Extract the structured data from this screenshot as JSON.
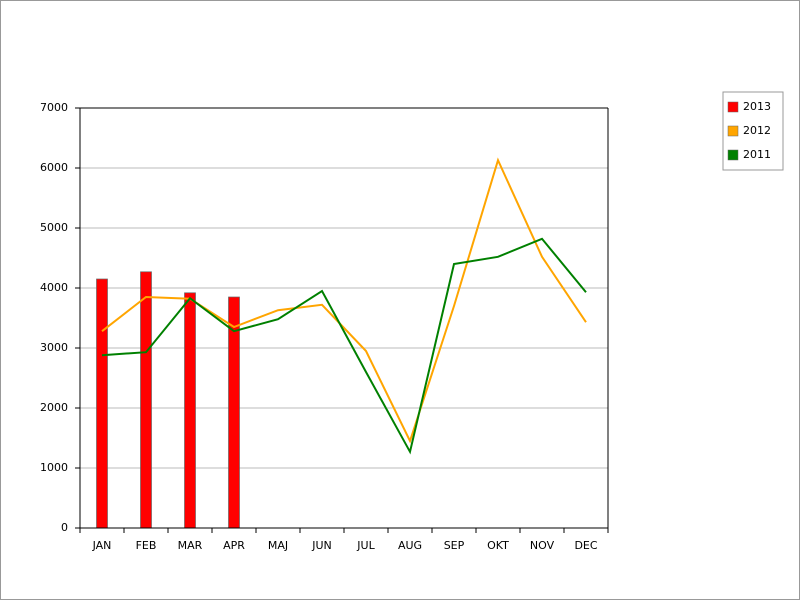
{
  "chart_data": {
    "type": "bar-line",
    "categories": [
      "JAN",
      "FEB",
      "MAR",
      "APR",
      "MAJ",
      "JUN",
      "JUL",
      "AUG",
      "SEP",
      "OKT",
      "NOV",
      "DEC"
    ],
    "series": [
      {
        "name": "2013",
        "type": "bar",
        "color": "#ff0000",
        "values": [
          4150,
          4270,
          3920,
          3850,
          null,
          null,
          null,
          null,
          null,
          null,
          null,
          null
        ]
      },
      {
        "name": "2012",
        "type": "line",
        "color": "#ffa500",
        "values": [
          3280,
          3850,
          3820,
          3350,
          3630,
          3720,
          2950,
          1450,
          3700,
          6130,
          4520,
          3430
        ]
      },
      {
        "name": "2011",
        "type": "line",
        "color": "#008000",
        "values": [
          2880,
          2930,
          3830,
          3280,
          3480,
          3950,
          2600,
          1270,
          4400,
          4520,
          4820,
          3930
        ]
      }
    ],
    "ylim": [
      0,
      7000
    ],
    "yticks": [
      0,
      1000,
      2000,
      3000,
      4000,
      5000,
      6000,
      7000
    ],
    "grid": true,
    "legend": "right"
  }
}
